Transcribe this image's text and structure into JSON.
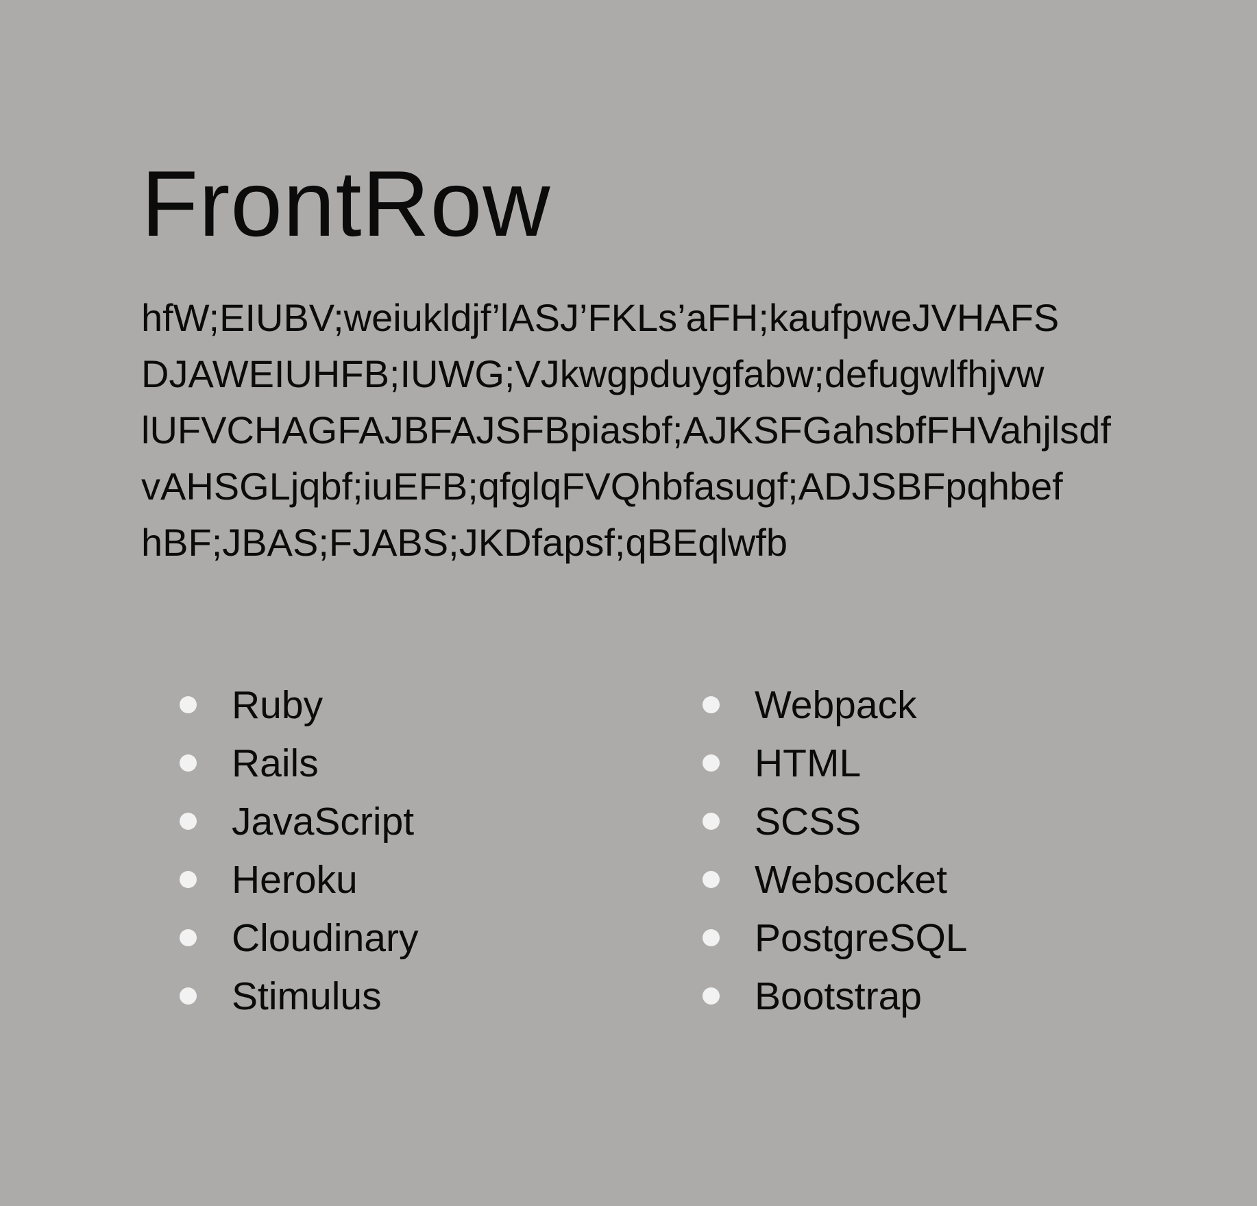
{
  "project": {
    "title": "FrontRow",
    "description_lines": [
      "hfW;EIUBV;weiukldjf’lASJ’FKLs’aFH;kaufpweJVHAFS",
      "DJAWEIUHFB;IUWG;VJkwgpduygfabw;defugwlfhjvw",
      "lUFVCHAGFAJBFAJSFBpiasbf;AJKSFGahsbfFHVahjlsdf",
      "vAHSGLjqbf;iuEFB;qfglqFVQhbfasugf;ADJSBFpqhbef",
      "hBF;JBAS;FJABS;JKDfapsf;qBEqlwfb"
    ]
  },
  "tech_stack": {
    "column_1": [
      "Ruby",
      "Rails",
      "JavaScript",
      "Heroku",
      "Cloudinary",
      "Stimulus"
    ],
    "column_2": [
      "Webpack",
      "HTML",
      "SCSS",
      "Websocket",
      "PostgreSQL",
      "Bootstrap"
    ]
  },
  "colors": {
    "background": "#acabaa",
    "text": "#0b0b0b",
    "bullet": "#f2f2f2"
  }
}
